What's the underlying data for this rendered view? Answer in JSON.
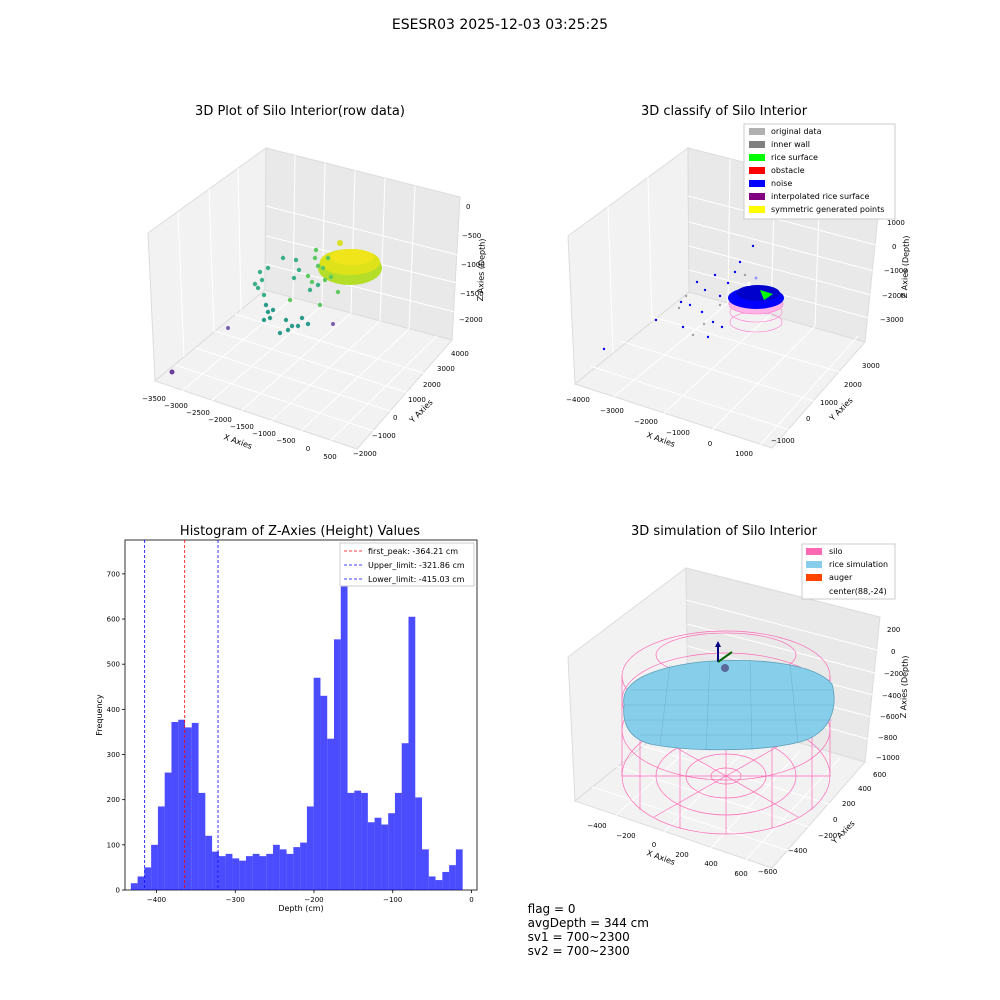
{
  "figure": {
    "suptitle": "ESESR03 2025-12-03 03:25:25",
    "status": {
      "flag": "flag = 0",
      "avg_depth": "avgDepth = 344 cm",
      "sv1": "sv1 = 700~2300",
      "sv2": "sv2 = 700~2300"
    }
  },
  "colors": {
    "hist_bar": "#0000ff",
    "hist_alpha": 0.7,
    "first_peak": "#ff0000",
    "limits": "#0000ff",
    "original_data": "#b0b0b0",
    "inner_wall": "#808080",
    "rice_surface": "#00ff00",
    "obstacle": "#ff0000",
    "noise": "#0000ff",
    "interpolated_rice_surface": "#800080",
    "symmetric_generated_points": "#ffff00",
    "silo": "#ff69b4",
    "rice_simulation": "#87ceeb",
    "auger": "#ff4500"
  },
  "chart_data": [
    {
      "type": "scatter",
      "projection": "3d",
      "title": "3D Plot of Silo Interior(row data)",
      "xlabel": "X Axies",
      "ylabel": "Y Axies",
      "zlabel": "Z Axies (Depth)",
      "x_ticks": [
        "−3500",
        "−3000",
        "−2500",
        "−2000",
        "−1500",
        "−1000",
        "−500",
        "0",
        "500"
      ],
      "y_ticks": [
        "−2000",
        "−1000",
        "0",
        "1000",
        "2000",
        "3000",
        "4000"
      ],
      "z_ticks": [
        "0",
        "−500",
        "−1000",
        "−1500",
        "−2000"
      ],
      "colormap": "viridis"
    },
    {
      "type": "scatter",
      "projection": "3d",
      "title": "3D classify of Silo Interior",
      "xlabel": "X Axies",
      "ylabel": "Y Axies",
      "zlabel": "Z Axies (Depth)",
      "x_ticks": [
        "−4000",
        "−3000",
        "−2000",
        "−1000",
        "0",
        "1000"
      ],
      "y_ticks": [
        "−1000",
        "0",
        "1000",
        "2000",
        "3000"
      ],
      "z_ticks": [
        "1000",
        "0",
        "−1000",
        "−2000",
        "−3000"
      ],
      "legend_position": "top-right",
      "legend": [
        "original data",
        "inner wall",
        "rice surface",
        "obstacle",
        "noise",
        "interpolated rice surface",
        "symmetric generated points"
      ]
    },
    {
      "type": "bar",
      "title": "Histogram of Z-Axies (Height) Values",
      "xlabel": "Depth (cm)",
      "ylabel": "Frequency",
      "xlim": [
        -440,
        7
      ],
      "ylim": [
        0,
        775
      ],
      "x_ticks": [
        -400,
        -300,
        -200,
        -100,
        0
      ],
      "x_tick_labels": [
        "−400",
        "−300",
        "−200",
        "−100",
        "0"
      ],
      "y_ticks": [
        0,
        100,
        200,
        300,
        400,
        500,
        600,
        700
      ],
      "bin_width": 8.6,
      "bin_starts": [
        -432.6,
        -424.0,
        -415.4,
        -406.8,
        -398.2,
        -389.6,
        -381.0,
        -372.4,
        -363.8,
        -355.2,
        -346.6,
        -338.0,
        -329.4,
        -320.8,
        -312.2,
        -303.6,
        -295.0,
        -286.4,
        -277.8,
        -269.2,
        -260.6,
        -252.0,
        -243.4,
        -234.8,
        -226.2,
        -217.6,
        -209.0,
        -200.4,
        -191.8,
        -183.2,
        -174.6,
        -166.0,
        -157.4,
        -148.8,
        -140.2,
        -131.6,
        -123.0,
        -114.4,
        -105.8,
        -97.2,
        -88.6,
        -80.0,
        -71.4,
        -62.8,
        -54.2,
        -45.6,
        -37.0,
        -28.4,
        -19.8,
        -11.2,
        -2.6
      ],
      "values": [
        15,
        30,
        50,
        100,
        185,
        260,
        372,
        377,
        360,
        370,
        215,
        120,
        85,
        75,
        80,
        70,
        65,
        75,
        80,
        75,
        80,
        100,
        90,
        80,
        95,
        105,
        185,
        470,
        430,
        335,
        555,
        735,
        215,
        220,
        215,
        150,
        160,
        145,
        170,
        215,
        325,
        605,
        205,
        90,
        30,
        22,
        40,
        55,
        90,
        0,
        0
      ],
      "lines": [
        {
          "name": "first_peak: -364.21 cm",
          "x": -364.21,
          "color": "red"
        },
        {
          "name": "Upper_limit: -321.86 cm",
          "x": -321.86,
          "color": "blue"
        },
        {
          "name": "Lower_limit: -415.03 cm",
          "x": -415.03,
          "color": "blue"
        }
      ],
      "legend_position": "top-right"
    },
    {
      "type": "surface",
      "projection": "3d",
      "title": "3D simulation of Silo Interior",
      "xlabel": "X Axies",
      "ylabel": "Y Axies",
      "zlabel": "Z Axies (Depth)",
      "x_ticks": [
        "−400",
        "−200",
        "0",
        "200",
        "400",
        "600"
      ],
      "y_ticks": [
        "−600",
        "−400",
        "−200",
        "0",
        "200",
        "400",
        "600"
      ],
      "z_ticks": [
        "200",
        "0",
        "−200",
        "−400",
        "−600",
        "−800",
        "−1000"
      ],
      "legend_position": "top-right",
      "legend": [
        "silo",
        "rice simulation",
        "auger",
        "center(88,-24)"
      ]
    }
  ]
}
